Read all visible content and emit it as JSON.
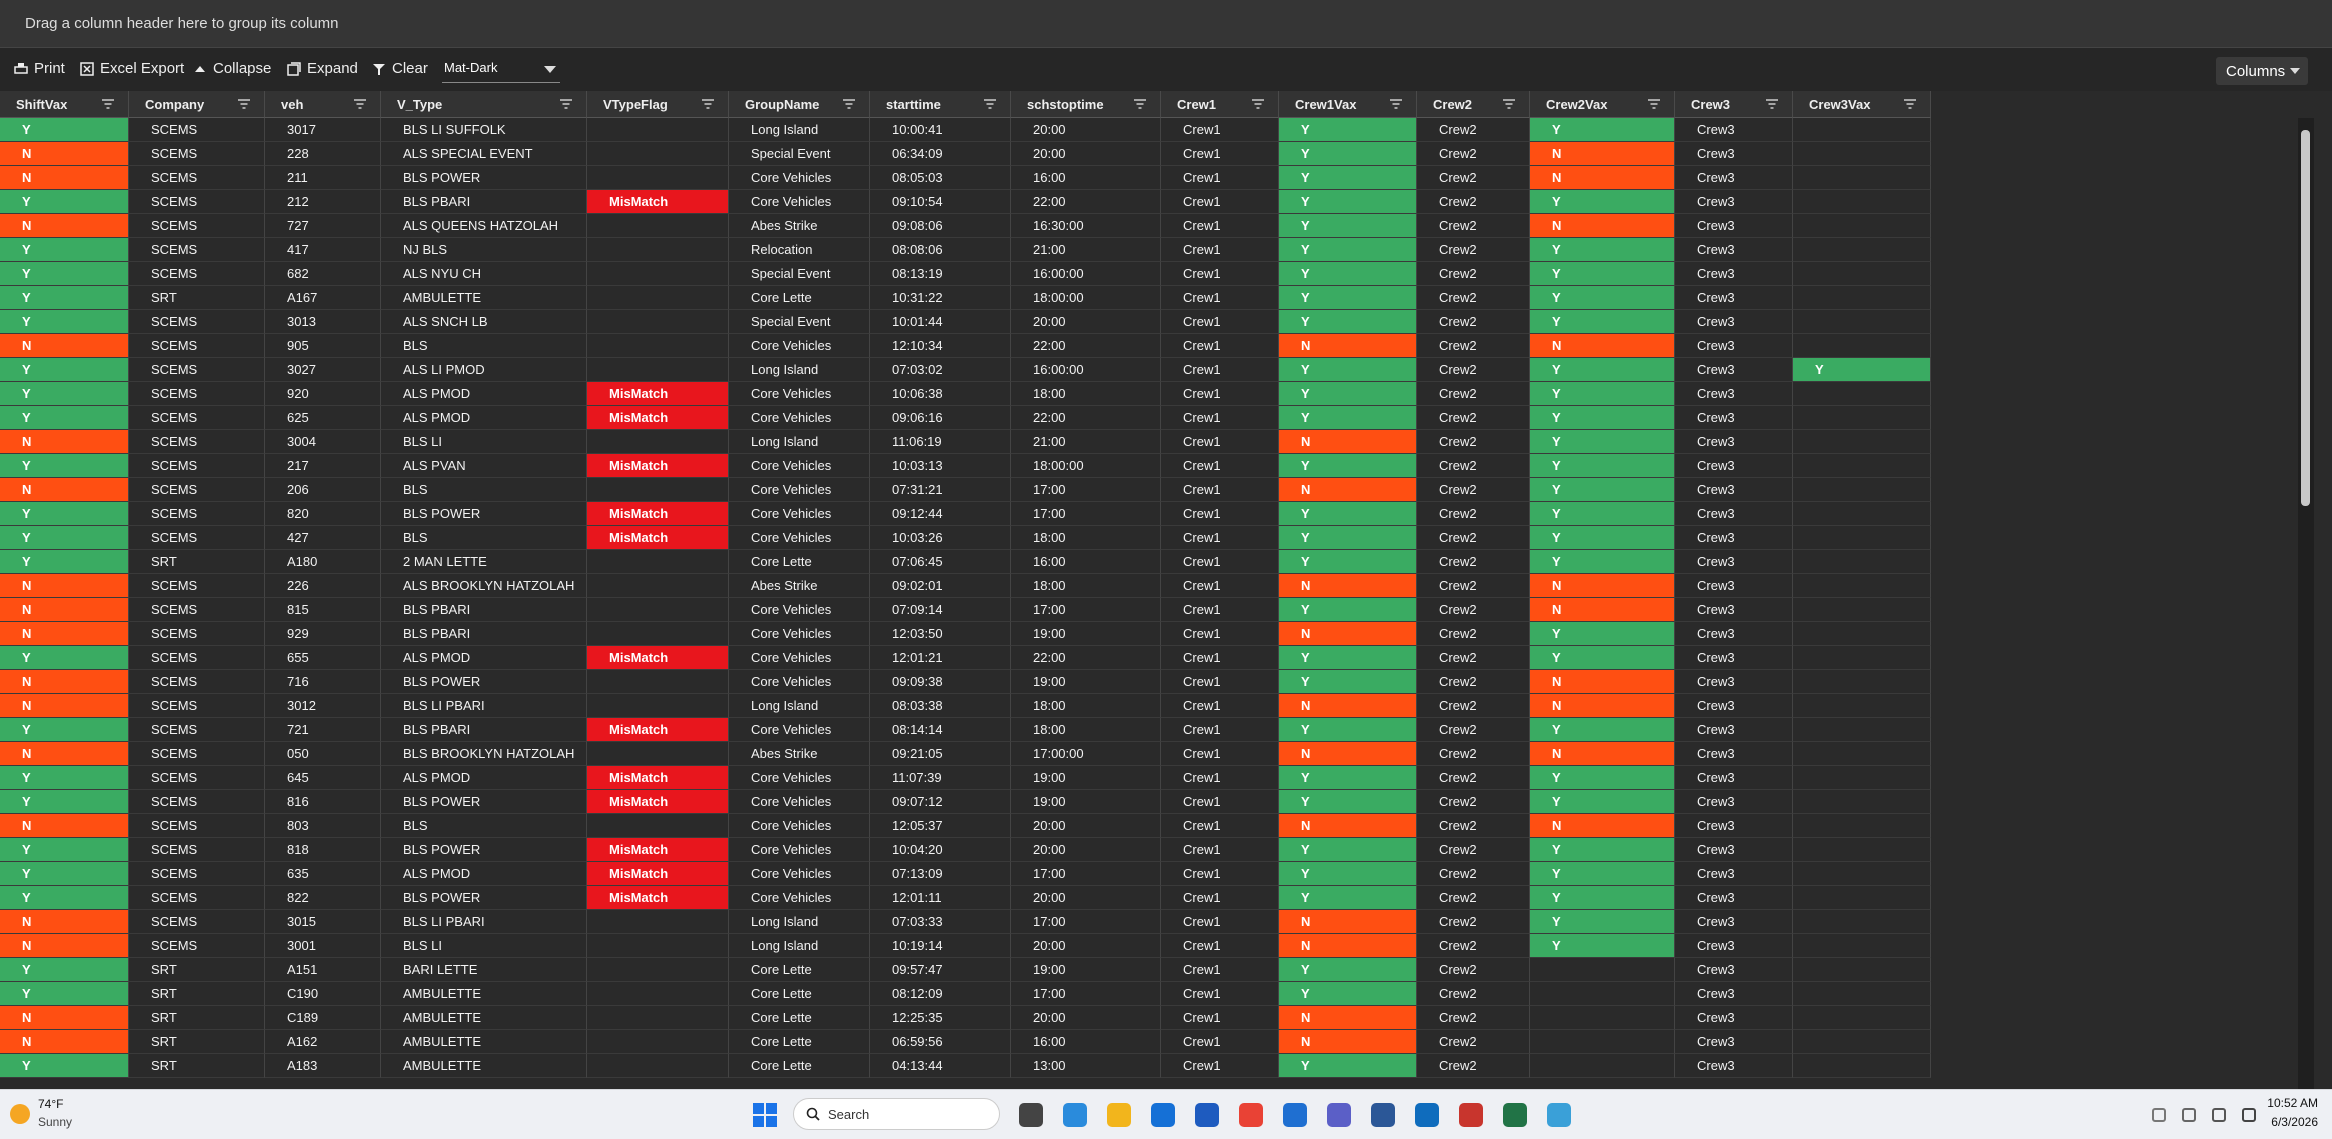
{
  "group_panel": "Drag a column header here to group its column",
  "toolbar": {
    "buttons": [
      "Print",
      "Excel Export",
      "Collapse",
      "Expand",
      "Clear"
    ],
    "theme": "Mat-Dark",
    "columns_button": "Columns"
  },
  "highlight": {
    "Y": "#3aab62",
    "N": "#ff4f12",
    "MisMatch": "#e8161d"
  },
  "table": {
    "columns": [
      "ShiftVax",
      "Company",
      "veh",
      "V_Type",
      "VTypeFlag",
      "GroupName",
      "starttime",
      "schstoptime",
      "Crew1",
      "Crew1Vax",
      "Crew2",
      "Crew2Vax",
      "Crew3",
      "Crew3Vax"
    ],
    "rows": [
      [
        "Y",
        "SCEMS",
        "3017",
        "BLS LI SUFFOLK",
        null,
        "Long Island",
        "10:00:41",
        "20:00",
        "Crew1",
        "Y",
        "Crew2",
        "Y",
        "Crew3",
        null
      ],
      [
        "N",
        "SCEMS",
        "228",
        "ALS SPECIAL EVENT",
        null,
        "Special Event",
        "06:34:09",
        "20:00",
        "Crew1",
        "Y",
        "Crew2",
        "N",
        "Crew3",
        null
      ],
      [
        "N",
        "SCEMS",
        "211",
        "BLS POWER",
        null,
        "Core Vehicles",
        "08:05:03",
        "16:00",
        "Crew1",
        "Y",
        "Crew2",
        "N",
        "Crew3",
        null
      ],
      [
        "Y",
        "SCEMS",
        "212",
        "BLS PBARI",
        "MisMatch",
        "Core Vehicles",
        "09:10:54",
        "22:00",
        "Crew1",
        "Y",
        "Crew2",
        "Y",
        "Crew3",
        null
      ],
      [
        "N",
        "SCEMS",
        "727",
        "ALS QUEENS HATZOLAH",
        null,
        "Abes Strike",
        "09:08:06",
        "16:30:00",
        "Crew1",
        "Y",
        "Crew2",
        "N",
        "Crew3",
        null
      ],
      [
        "Y",
        "SCEMS",
        "417",
        "NJ BLS",
        null,
        "Relocation",
        "08:08:06",
        "21:00",
        "Crew1",
        "Y",
        "Crew2",
        "Y",
        "Crew3",
        null
      ],
      [
        "Y",
        "SCEMS",
        "682",
        "ALS NYU CH",
        null,
        "Special Event",
        "08:13:19",
        "16:00:00",
        "Crew1",
        "Y",
        "Crew2",
        "Y",
        "Crew3",
        null
      ],
      [
        "Y",
        "SRT",
        "A167",
        "AMBULETTE",
        null,
        "Core Lette",
        "10:31:22",
        "18:00:00",
        "Crew1",
        "Y",
        "Crew2",
        "Y",
        "Crew3",
        null
      ],
      [
        "Y",
        "SCEMS",
        "3013",
        "ALS SNCH LB",
        null,
        "Special Event",
        "10:01:44",
        "20:00",
        "Crew1",
        "Y",
        "Crew2",
        "Y",
        "Crew3",
        null
      ],
      [
        "N",
        "SCEMS",
        "905",
        "BLS",
        null,
        "Core Vehicles",
        "12:10:34",
        "22:00",
        "Crew1",
        "N",
        "Crew2",
        "N",
        "Crew3",
        null
      ],
      [
        "Y",
        "SCEMS",
        "3027",
        "ALS LI PMOD",
        null,
        "Long Island",
        "07:03:02",
        "16:00:00",
        "Crew1",
        "Y",
        "Crew2",
        "Y",
        "Crew3",
        "Y"
      ],
      [
        "Y",
        "SCEMS",
        "920",
        "ALS PMOD",
        "MisMatch",
        "Core Vehicles",
        "10:06:38",
        "18:00",
        "Crew1",
        "Y",
        "Crew2",
        "Y",
        "Crew3",
        null
      ],
      [
        "Y",
        "SCEMS",
        "625",
        "ALS PMOD",
        "MisMatch",
        "Core Vehicles",
        "09:06:16",
        "22:00",
        "Crew1",
        "Y",
        "Crew2",
        "Y",
        "Crew3",
        null
      ],
      [
        "N",
        "SCEMS",
        "3004",
        "BLS LI",
        null,
        "Long Island",
        "11:06:19",
        "21:00",
        "Crew1",
        "N",
        "Crew2",
        "Y",
        "Crew3",
        null
      ],
      [
        "Y",
        "SCEMS",
        "217",
        "ALS PVAN",
        "MisMatch",
        "Core Vehicles",
        "10:03:13",
        "18:00:00",
        "Crew1",
        "Y",
        "Crew2",
        "Y",
        "Crew3",
        null
      ],
      [
        "N",
        "SCEMS",
        "206",
        "BLS",
        null,
        "Core Vehicles",
        "07:31:21",
        "17:00",
        "Crew1",
        "N",
        "Crew2",
        "Y",
        "Crew3",
        null
      ],
      [
        "Y",
        "SCEMS",
        "820",
        "BLS POWER",
        "MisMatch",
        "Core Vehicles",
        "09:12:44",
        "17:00",
        "Crew1",
        "Y",
        "Crew2",
        "Y",
        "Crew3",
        null
      ],
      [
        "Y",
        "SCEMS",
        "427",
        "BLS",
        "MisMatch",
        "Core Vehicles",
        "10:03:26",
        "18:00",
        "Crew1",
        "Y",
        "Crew2",
        "Y",
        "Crew3",
        null
      ],
      [
        "Y",
        "SRT",
        "A180",
        "2 MAN LETTE",
        null,
        "Core Lette",
        "07:06:45",
        "16:00",
        "Crew1",
        "Y",
        "Crew2",
        "Y",
        "Crew3",
        null
      ],
      [
        "N",
        "SCEMS",
        "226",
        "ALS BROOKLYN HATZOLAH",
        null,
        "Abes Strike",
        "09:02:01",
        "18:00",
        "Crew1",
        "N",
        "Crew2",
        "N",
        "Crew3",
        null
      ],
      [
        "N",
        "SCEMS",
        "815",
        "BLS PBARI",
        null,
        "Core Vehicles",
        "07:09:14",
        "17:00",
        "Crew1",
        "Y",
        "Crew2",
        "N",
        "Crew3",
        null
      ],
      [
        "N",
        "SCEMS",
        "929",
        "BLS PBARI",
        null,
        "Core Vehicles",
        "12:03:50",
        "19:00",
        "Crew1",
        "N",
        "Crew2",
        "Y",
        "Crew3",
        null
      ],
      [
        "Y",
        "SCEMS",
        "655",
        "ALS PMOD",
        "MisMatch",
        "Core Vehicles",
        "12:01:21",
        "22:00",
        "Crew1",
        "Y",
        "Crew2",
        "Y",
        "Crew3",
        null
      ],
      [
        "N",
        "SCEMS",
        "716",
        "BLS POWER",
        null,
        "Core Vehicles",
        "09:09:38",
        "19:00",
        "Crew1",
        "Y",
        "Crew2",
        "N",
        "Crew3",
        null
      ],
      [
        "N",
        "SCEMS",
        "3012",
        "BLS LI PBARI",
        null,
        "Long Island",
        "08:03:38",
        "18:00",
        "Crew1",
        "N",
        "Crew2",
        "N",
        "Crew3",
        null
      ],
      [
        "Y",
        "SCEMS",
        "721",
        "BLS PBARI",
        "MisMatch",
        "Core Vehicles",
        "08:14:14",
        "18:00",
        "Crew1",
        "Y",
        "Crew2",
        "Y",
        "Crew3",
        null
      ],
      [
        "N",
        "SCEMS",
        "050",
        "BLS BROOKLYN HATZOLAH",
        null,
        "Abes Strike",
        "09:21:05",
        "17:00:00",
        "Crew1",
        "N",
        "Crew2",
        "N",
        "Crew3",
        null
      ],
      [
        "Y",
        "SCEMS",
        "645",
        "ALS PMOD",
        "MisMatch",
        "Core Vehicles",
        "11:07:39",
        "19:00",
        "Crew1",
        "Y",
        "Crew2",
        "Y",
        "Crew3",
        null
      ],
      [
        "Y",
        "SCEMS",
        "816",
        "BLS POWER",
        "MisMatch",
        "Core Vehicles",
        "09:07:12",
        "19:00",
        "Crew1",
        "Y",
        "Crew2",
        "Y",
        "Crew3",
        null
      ],
      [
        "N",
        "SCEMS",
        "803",
        "BLS",
        null,
        "Core Vehicles",
        "12:05:37",
        "20:00",
        "Crew1",
        "N",
        "Crew2",
        "N",
        "Crew3",
        null
      ],
      [
        "Y",
        "SCEMS",
        "818",
        "BLS POWER",
        "MisMatch",
        "Core Vehicles",
        "10:04:20",
        "20:00",
        "Crew1",
        "Y",
        "Crew2",
        "Y",
        "Crew3",
        null
      ],
      [
        "Y",
        "SCEMS",
        "635",
        "ALS PMOD",
        "MisMatch",
        "Core Vehicles",
        "07:13:09",
        "17:00",
        "Crew1",
        "Y",
        "Crew2",
        "Y",
        "Crew3",
        null
      ],
      [
        "Y",
        "SCEMS",
        "822",
        "BLS POWER",
        "MisMatch",
        "Core Vehicles",
        "12:01:11",
        "20:00",
        "Crew1",
        "Y",
        "Crew2",
        "Y",
        "Crew3",
        null
      ],
      [
        "N",
        "SCEMS",
        "3015",
        "BLS LI PBARI",
        null,
        "Long Island",
        "07:03:33",
        "17:00",
        "Crew1",
        "N",
        "Crew2",
        "Y",
        "Crew3",
        null
      ],
      [
        "N",
        "SCEMS",
        "3001",
        "BLS LI",
        null,
        "Long Island",
        "10:19:14",
        "20:00",
        "Crew1",
        "N",
        "Crew2",
        "Y",
        "Crew3",
        null
      ],
      [
        "Y",
        "SRT",
        "A151",
        "BARI LETTE",
        null,
        "Core Lette",
        "09:57:47",
        "19:00",
        "Crew1",
        "Y",
        "Crew2",
        null,
        "Crew3",
        null
      ],
      [
        "Y",
        "SRT",
        "C190",
        "AMBULETTE",
        null,
        "Core Lette",
        "08:12:09",
        "17:00",
        "Crew1",
        "Y",
        "Crew2",
        null,
        "Crew3",
        null
      ],
      [
        "N",
        "SRT",
        "C189",
        "AMBULETTE",
        null,
        "Core Lette",
        "12:25:35",
        "20:00",
        "Crew1",
        "N",
        "Crew2",
        null,
        "Crew3",
        null
      ],
      [
        "N",
        "SRT",
        "A162",
        "AMBULETTE",
        null,
        "Core Lette",
        "06:59:56",
        "16:00",
        "Crew1",
        "N",
        "Crew2",
        null,
        "Crew3",
        null
      ],
      [
        "Y",
        "SRT",
        "A183",
        "AMBULETTE",
        null,
        "Core Lette",
        "04:13:44",
        "13:00",
        "Crew1",
        "Y",
        "Crew2",
        null,
        "Crew3",
        null
      ]
    ]
  },
  "taskbar": {
    "temperature": "74°F",
    "condition": "Sunny",
    "search": "Search",
    "time": "10:52 AM",
    "date": "6/3/2026"
  }
}
